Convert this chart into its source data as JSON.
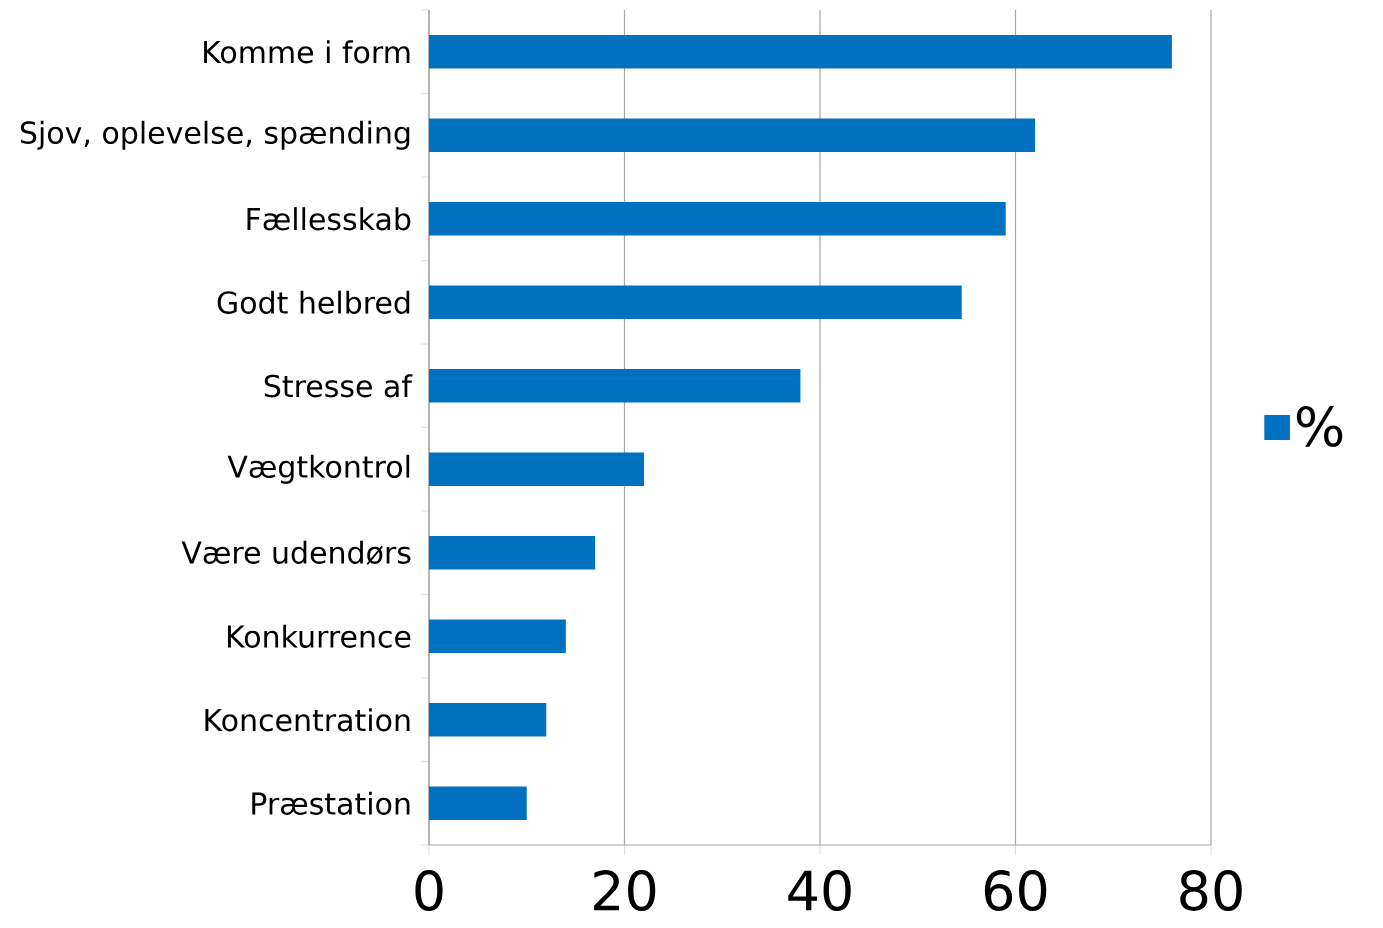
{
  "chart_data": {
    "type": "bar",
    "orientation": "horizontal",
    "categories": [
      "Komme i form",
      "Sjov, oplevelse, spænding",
      "Fællesskab",
      "Godt helbred",
      "Stresse af",
      "Vægtkontrol",
      "Være udendørs",
      "Konkurrence",
      "Koncentration",
      "Præstation"
    ],
    "series": [
      {
        "name": "%",
        "color": "#0070c0",
        "values": [
          76,
          62,
          59,
          54.5,
          38,
          22,
          17,
          14,
          12,
          10
        ]
      }
    ],
    "xlim": [
      0,
      80
    ],
    "xticks": [
      0,
      20,
      40,
      60,
      80
    ],
    "grid": "x",
    "legend": "right"
  }
}
